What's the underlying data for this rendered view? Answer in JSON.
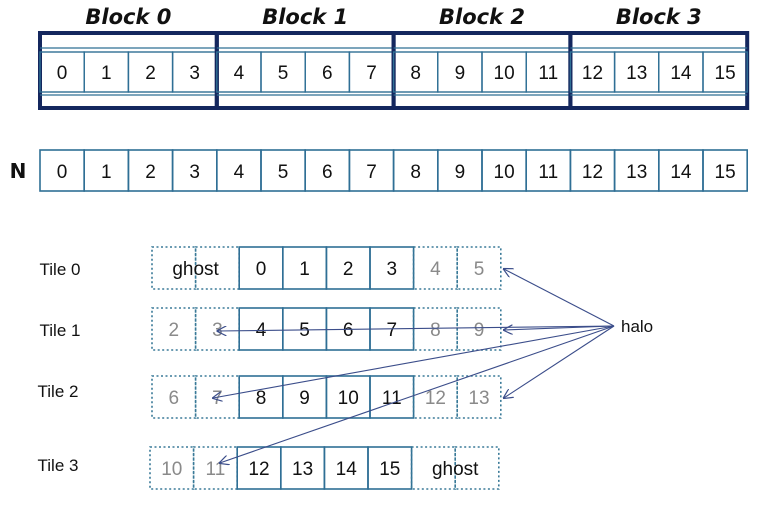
{
  "blocks": [
    {
      "title": "Block 0",
      "cells": [
        "0",
        "1",
        "2",
        "3"
      ]
    },
    {
      "title": "Block 1",
      "cells": [
        "4",
        "5",
        "6",
        "7"
      ]
    },
    {
      "title": "Block 2",
      "cells": [
        "8",
        "9",
        "10",
        "11"
      ]
    },
    {
      "title": "Block 3",
      "cells": [
        "12",
        "13",
        "14",
        "15"
      ]
    }
  ],
  "array": {
    "label": "N",
    "cells": [
      "0",
      "1",
      "2",
      "3",
      "4",
      "5",
      "6",
      "7",
      "8",
      "9",
      "10",
      "11",
      "12",
      "13",
      "14",
      "15"
    ]
  },
  "tiles": [
    {
      "label": "Tile 0",
      "left_halo": [
        "",
        ""
      ],
      "left_text": "ghost",
      "core": [
        "0",
        "1",
        "2",
        "3"
      ],
      "right_halo": [
        "4",
        "5"
      ],
      "right_text": ""
    },
    {
      "label": "Tile 1",
      "left_halo": [
        "2",
        "3"
      ],
      "left_text": "",
      "core": [
        "4",
        "5",
        "6",
        "7"
      ],
      "right_halo": [
        "8",
        "9"
      ],
      "right_text": ""
    },
    {
      "label": "Tile 2",
      "left_halo": [
        "6",
        "7"
      ],
      "left_text": "",
      "core": [
        "8",
        "9",
        "10",
        "11"
      ],
      "right_halo": [
        "12",
        "13"
      ],
      "right_text": ""
    },
    {
      "label": "Tile 3",
      "left_halo": [
        "10",
        "11"
      ],
      "left_text": "",
      "core": [
        "12",
        "13",
        "14",
        "15"
      ],
      "right_halo": [
        "",
        ""
      ],
      "right_text": "ghost"
    }
  ],
  "halo_label": "halo",
  "colors": {
    "block_border": "#14275e",
    "cell_border": "#2f6f95",
    "halo_border": "#3a7a98",
    "arrow": "#3b4d8a",
    "halo_text": "#8a8a8a"
  }
}
